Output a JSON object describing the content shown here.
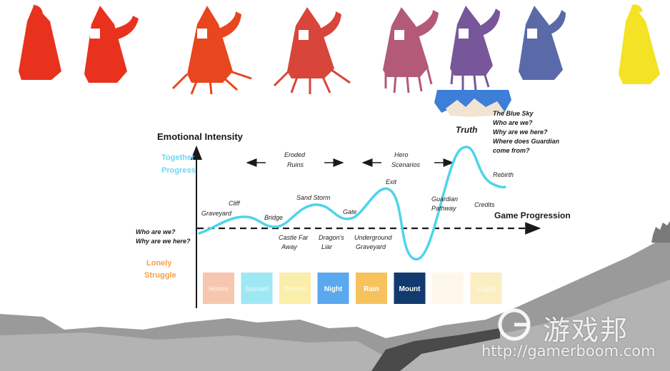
{
  "colors": {
    "curve": "#4fd4ea",
    "together": "#6fd6f0",
    "lonely": "#f2a24a",
    "axis": "#1a1a1a",
    "ground": "#9a9a9a",
    "ground_dark": "#4a4a4a"
  },
  "axes": {
    "y_label": "Emotional Intensity",
    "x_label": "Game Progression",
    "top_label_1": "Together",
    "top_label_2": "Progress",
    "bottom_label_1": "Lonely",
    "bottom_label_2": "Struggle"
  },
  "start_question_1": "Who are we?",
  "start_question_2": "Why are we here?",
  "stages": {
    "cliff": "Cliff",
    "graveyard": "Graveyard",
    "bridge": "Bridge",
    "sand_storm": "Sand Storm",
    "gate": "Gate",
    "exit": "Exit",
    "guardian_1": "Guardian",
    "guardian_2": "Pathway",
    "truth": "Truth",
    "rebirth": "Rebirth",
    "credits": "Credits",
    "castle_1": "Castle Far",
    "castle_2": "Away",
    "dragon_1": "Dragon's",
    "dragon_2": "Liar",
    "underground_1": "Underground",
    "underground_2": "Graveyard"
  },
  "arrows": {
    "eroded_1": "Eroded",
    "eroded_2": "Ruins",
    "hero_1": "Hero",
    "hero_2": "Scenarios"
  },
  "blue_sky_lines": [
    "The Blue Sky",
    "Who are we?",
    "Why are we here?",
    "Where does Guardian",
    "come from?"
  ],
  "color_boxes": [
    {
      "label": "Home",
      "color": "#f6c7ae",
      "text": "#fbe6da"
    },
    {
      "label": "Sunset",
      "color": "#9ee8f4",
      "text": "#d6f6fb"
    },
    {
      "label": "Desert",
      "color": "#fbeeaa",
      "text": "#fdf7d6"
    },
    {
      "label": "Night",
      "color": "#5aa8ee",
      "text": "#ffffff"
    },
    {
      "label": "Rain",
      "color": "#f6c25c",
      "text": "#ffffff"
    },
    {
      "label": "Mount",
      "color": "#123a6e",
      "text": "#ffffff"
    },
    {
      "label": "",
      "color": "#fdf8ea",
      "text": "#ffffff"
    },
    {
      "label": "Light",
      "color": "#fbeec2",
      "text": "#fdf8e6"
    }
  ],
  "figures": [
    {
      "color": "#e8321e"
    },
    {
      "color": "#e8321e"
    },
    {
      "color": "#e8461e"
    },
    {
      "color": "#d8453a"
    },
    {
      "color": "#b25a78"
    },
    {
      "color": "#77579a"
    },
    {
      "color": "#5a6aa8"
    },
    {
      "color": "#f4e224"
    }
  ],
  "watermark": {
    "name": "游戏邦",
    "url": "http://gamerboom.com"
  }
}
